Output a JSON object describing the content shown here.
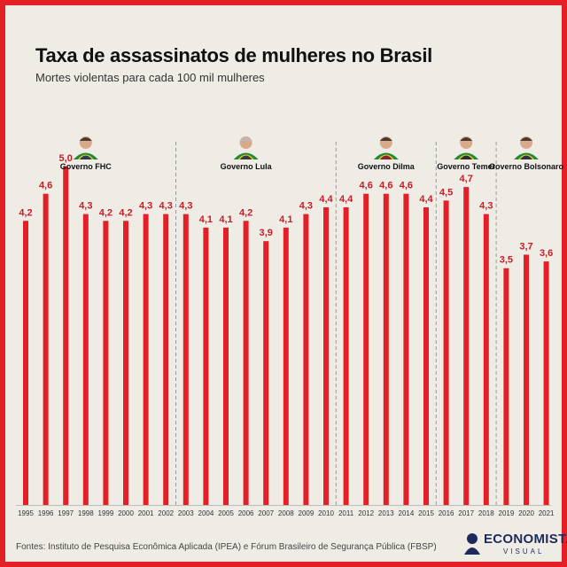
{
  "title": "Taxa de assassinatos de mulheres no Brasil",
  "subtitle": "Mortes violentas para cada 100 mil mulheres",
  "source": "Fontes: Instituto de Pesquisa Econômica Aplicada (IPEA) e  Fórum Brasileiro de Segurança Pública (FBSP)",
  "logo": {
    "line1": "ECONOMISTA",
    "line2": "VISUAL"
  },
  "colors": {
    "bar": "#e41f26",
    "frame": "#e41f26",
    "background": "#efece6"
  },
  "chart_data": {
    "type": "bar",
    "categories": [
      "1995",
      "1996",
      "1997",
      "1998",
      "1999",
      "2000",
      "2001",
      "2002",
      "2003",
      "2004",
      "2005",
      "2006",
      "2007",
      "2008",
      "2009",
      "2010",
      "2011",
      "2012",
      "2013",
      "2014",
      "2015",
      "2016",
      "2017",
      "2018",
      "2019",
      "2020",
      "2021"
    ],
    "values": [
      4.2,
      4.6,
      5.0,
      4.3,
      4.2,
      4.2,
      4.3,
      4.3,
      4.3,
      4.1,
      4.1,
      4.2,
      3.9,
      4.1,
      4.3,
      4.4,
      4.4,
      4.6,
      4.6,
      4.6,
      4.4,
      4.5,
      4.7,
      4.3,
      3.5,
      3.7,
      3.6
    ],
    "value_labels": [
      "4,2",
      "4,6",
      "5,0",
      "4,3",
      "4,2",
      "4,2",
      "4,3",
      "4,3",
      "4,3",
      "4,1",
      "4,1",
      "4,2",
      "3,9",
      "4,1",
      "4,3",
      "4,4",
      "4,4",
      "4,6",
      "4,6",
      "4,6",
      "4,4",
      "4,5",
      "4,7",
      "4,3",
      "3,5",
      "3,7",
      "3,6"
    ],
    "ylim": [
      0,
      5.5
    ],
    "grid": false,
    "periods": [
      {
        "label": "Governo FHC",
        "start": "1995",
        "end": "2002",
        "photo_over": "1998"
      },
      {
        "label": "Governo Lula",
        "start": "2003",
        "end": "2010",
        "photo_over": "2006"
      },
      {
        "label": "Governo Dilma",
        "start": "2011",
        "end": "2016",
        "photo_over": "2013"
      },
      {
        "label": "Governo Temer",
        "start": "2016",
        "end": "2018",
        "photo_over": "2017"
      },
      {
        "label": "Governo Bolsonaro",
        "start": "2019",
        "end": "2021",
        "photo_over": "2020"
      }
    ]
  }
}
